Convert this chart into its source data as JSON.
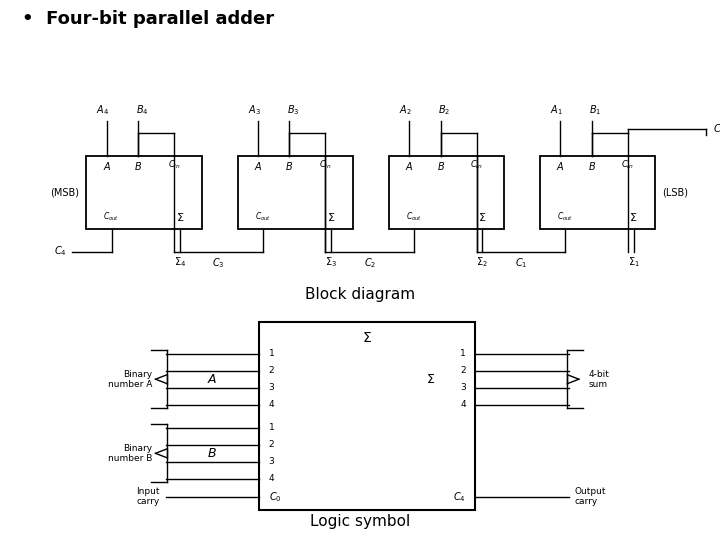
{
  "title": "•  Four-bit parallel adder",
  "block_diagram_label": "Block diagram",
  "logic_symbol_label": "Logic symbol",
  "bg": "#ffffff",
  "lc": "#000000",
  "title_fontsize": 13,
  "label_fontsize": 11,
  "box_order": [
    "MSB",
    "",
    "",
    "LSB"
  ],
  "A_labels": [
    "A_4",
    "A_3",
    "A_2",
    "A_1"
  ],
  "B_labels": [
    "B_4",
    "B_3",
    "B_2",
    "B_1"
  ],
  "carry_labels": [
    "C_4",
    "C_3",
    "C_2",
    "C_1"
  ],
  "sum_labels": [
    "Σ_4",
    "Σ_3",
    "Σ_2",
    "Σ_1"
  ]
}
